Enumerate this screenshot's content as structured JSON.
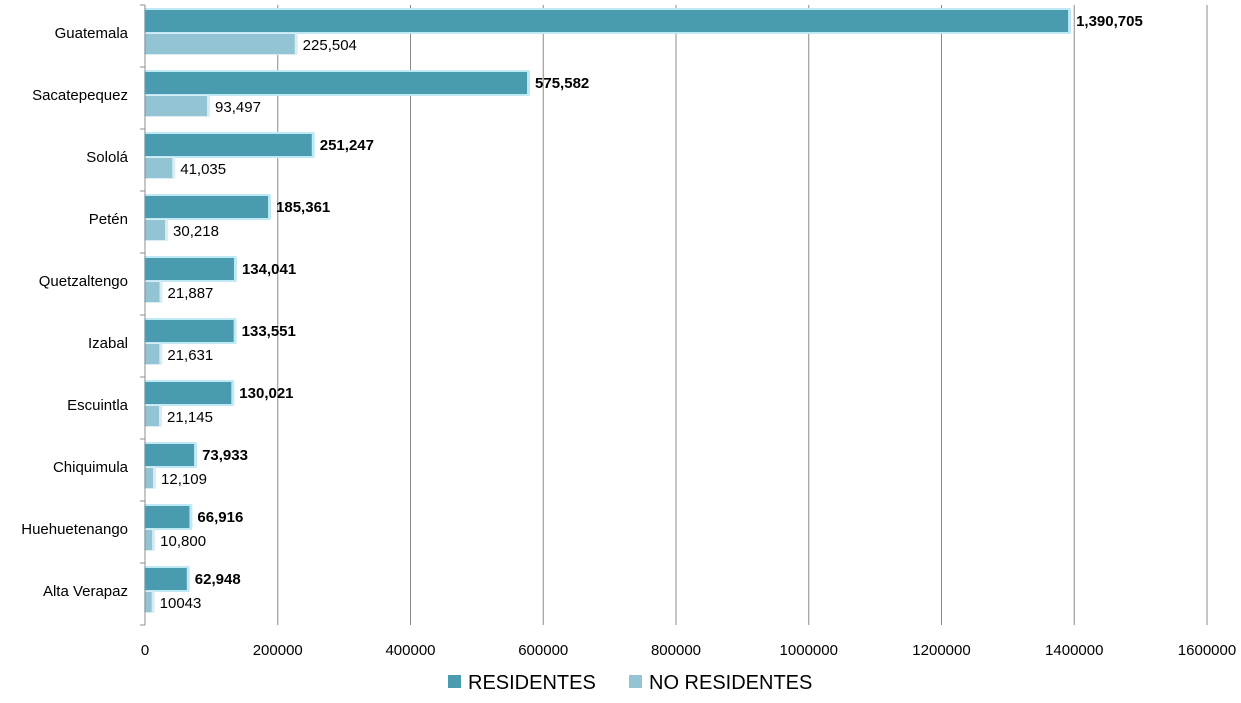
{
  "chart_data": {
    "type": "bar",
    "orientation": "horizontal",
    "categories": [
      "Guatemala",
      "Sacatepequez",
      "Sololá",
      "Petén",
      "Quetzaltengo",
      "Izabal",
      "Escuintla",
      "Chiquimula",
      "Huehuetenango",
      "Alta Verapaz"
    ],
    "series": [
      {
        "name": "RESIDENTES",
        "color": "#4a9bb0",
        "values": [
          1390705,
          575582,
          251247,
          185361,
          134041,
          133551,
          130021,
          73933,
          66916,
          62948
        ],
        "labels": [
          "1,390,705",
          "575,582",
          "251,247",
          "185,361",
          "134,041",
          "133,551",
          "130,021",
          "73,933",
          "66,916",
          "62,948"
        ]
      },
      {
        "name": "NO RESIDENTES",
        "color": "#93c4d4",
        "values": [
          225504,
          93497,
          41035,
          30218,
          21887,
          21631,
          21145,
          12109,
          10800,
          10043
        ],
        "labels": [
          "225,504",
          "93,497",
          "41,035",
          "30,218",
          "21,887",
          "21,631",
          "21,145",
          "12,109",
          "10,800",
          "10043"
        ]
      }
    ],
    "xlim": [
      0,
      1600000
    ],
    "xticks": [
      "0",
      "200000",
      "400000",
      "600000",
      "800000",
      "1000000",
      "1200000",
      "1400000",
      "1600000"
    ],
    "grid": true,
    "legend_position": "bottom",
    "title": "",
    "xlabel": "",
    "ylabel": ""
  }
}
